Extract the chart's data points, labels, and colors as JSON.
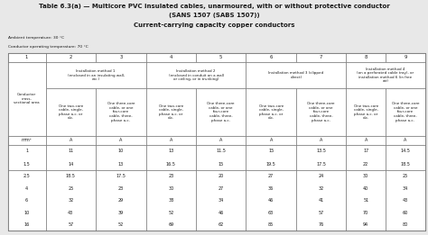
{
  "title_line1": "Table 6.3(a) — Multicore PVC insulated cables, unarmoured, with or without protective conductor",
  "title_line2": "(SANS 1507 (SABS 1507))",
  "title_line3": "Current-carrying capacity copper conductors",
  "ambient_temp": "Ambient temperature: 30 °C",
  "conductor_temp": "Conductor operating temperature: 70 °C",
  "col_numbers": [
    "1",
    "2",
    "3",
    "4",
    "5",
    "6",
    "7",
    "8",
    "9"
  ],
  "col1_header": "Conductor\ncross-\nsectional area",
  "method1": "Installation method 1\n(enclosed in an insulating wall,\netc.)",
  "method2": "Installation method 2\n(enclosed in conduit on a wall\nor ceiling, or in trunking)",
  "method3": "Installation method 3 (clipped\ndirect)",
  "method4": "Installation method 4\n(on a perforated cable tray), or\ninstallation method 6 (in free\nair)",
  "two_core": "One two-core\ncable, single-\nphase a.c. or\nd.c.",
  "three_core": "One three-core\ncable, or one\nfour-core\ncable, three-\nphase a.c.",
  "unit_col1": "mm²",
  "unit_other": "A",
  "data_rows": [
    [
      "1",
      "11",
      "10",
      "13",
      "11.5",
      "15",
      "13.5",
      "17",
      "14.5"
    ],
    [
      "1.5",
      "14",
      "13",
      "16.5",
      "15",
      "19.5",
      "17.5",
      "22",
      "18.5"
    ],
    [
      "2.5",
      "18.5",
      "17.5",
      "23",
      "20",
      "27",
      "24",
      "30",
      "25"
    ],
    [
      "4",
      "25",
      "23",
      "30",
      "27",
      "36",
      "32",
      "40",
      "34"
    ],
    [
      "6",
      "32",
      "29",
      "38",
      "34",
      "46",
      "41",
      "51",
      "43"
    ],
    [
      "10",
      "43",
      "39",
      "52",
      "46",
      "63",
      "57",
      "70",
      "60"
    ],
    [
      "16",
      "57",
      "52",
      "69",
      "62",
      "85",
      "76",
      "94",
      "80"
    ]
  ],
  "bg_color": "#e8e8e8",
  "text_color": "#1a1a1a",
  "border_color": "#666666",
  "title_fontsize": 5.0,
  "label_fontsize": 2.9,
  "data_fontsize": 3.5,
  "col_num_fontsize": 3.8,
  "unit_fontsize": 3.5
}
